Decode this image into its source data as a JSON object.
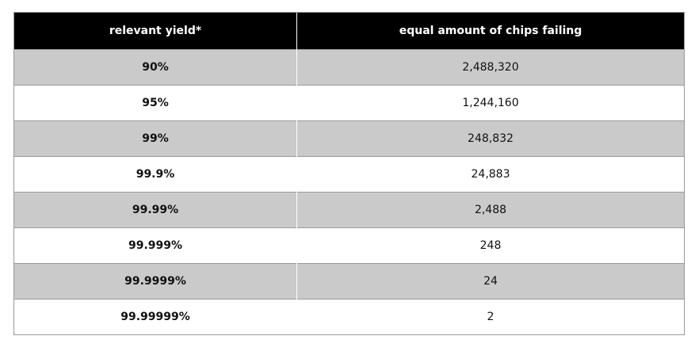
{
  "table": {
    "headers": {
      "yield": "relevant yield*",
      "failing": "equal amount of chips failing"
    },
    "rows": [
      {
        "yield": "90%",
        "failing": "2,488,320",
        "shaded": true
      },
      {
        "yield": "95%",
        "failing": "1,244,160",
        "shaded": false
      },
      {
        "yield": "99%",
        "failing": "248,832",
        "shaded": true
      },
      {
        "yield": "99.9%",
        "failing": "24,883",
        "shaded": false
      },
      {
        "yield": "99.99%",
        "failing": "2,488",
        "shaded": true
      },
      {
        "yield": "99.999%",
        "failing": "248",
        "shaded": false
      },
      {
        "yield": "99.9999%",
        "failing": "24",
        "shaded": true
      },
      {
        "yield": "99.99999%",
        "failing": "2",
        "shaded": false
      }
    ],
    "colors": {
      "header_background": "#000000",
      "header_text": "#ffffff",
      "shaded_row": "#cacaca",
      "plain_row": "#ffffff",
      "border": "#9a9a9a"
    }
  }
}
